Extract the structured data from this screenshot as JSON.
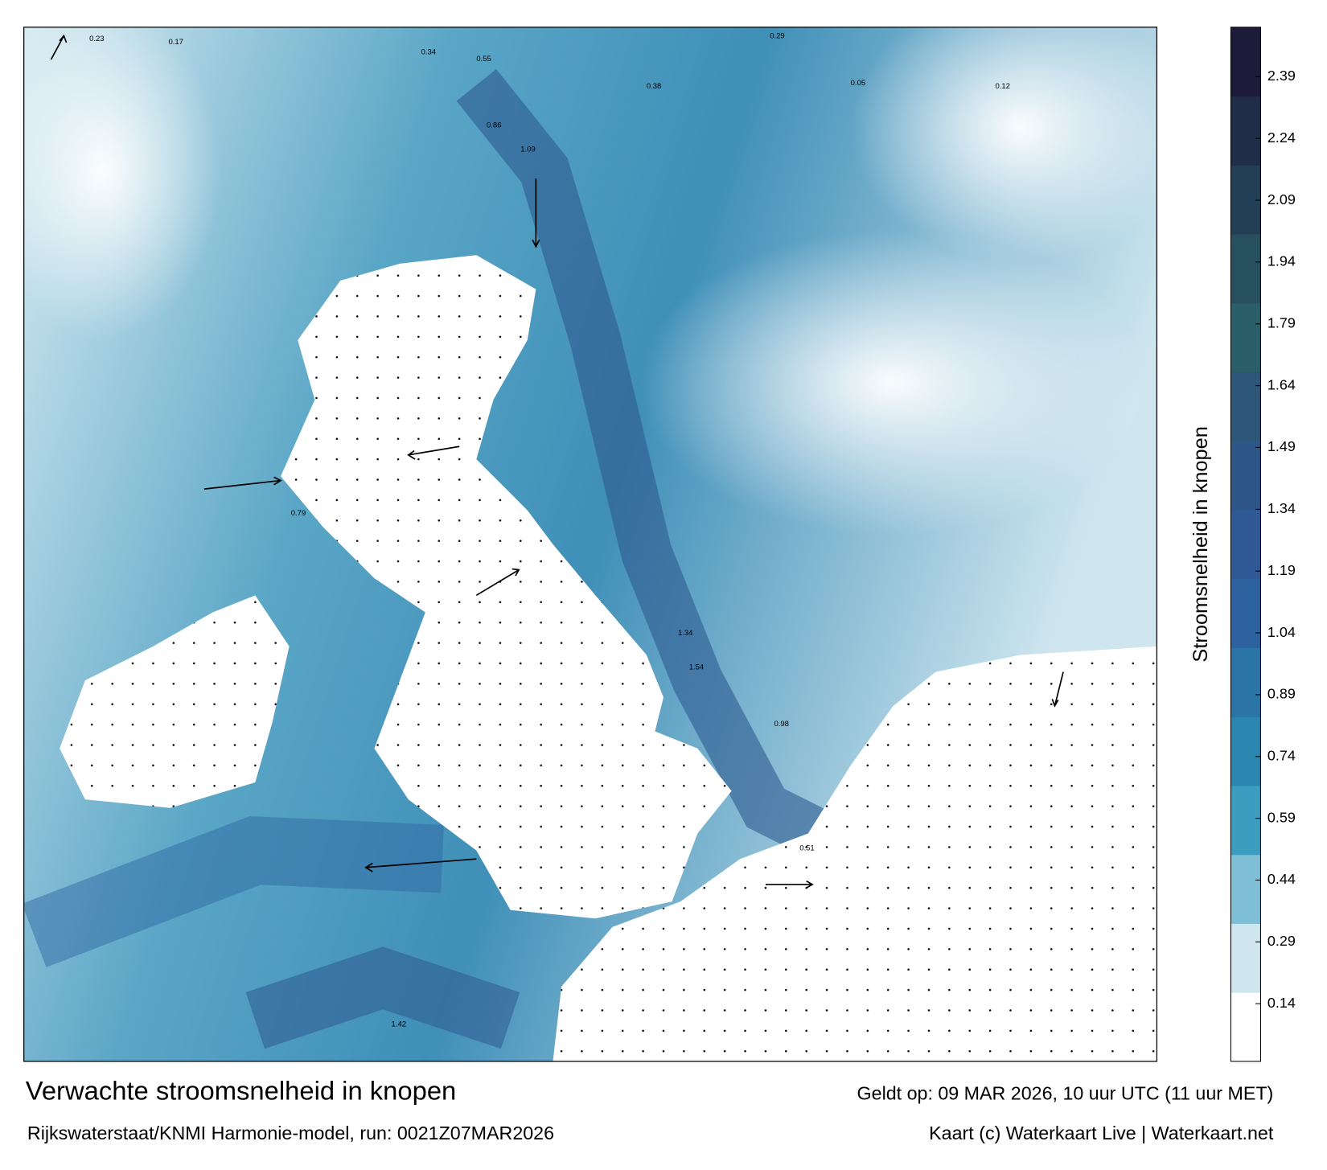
{
  "chart_data": {
    "type": "map",
    "title": "Verwachte stroomsnelheid in knopen",
    "valid_time": "Geldt op: 09 MAR 2026, 10 uur UTC (11 uur MET)",
    "source": "Rijkswaterstaat/KNMI Harmonie-model, run: 0021Z07MAR2026",
    "credit": "Kaart (c) Waterkaart Live | Waterkaart.net",
    "colorbar": {
      "label": "Stroomsnelheid in knopen",
      "ylim": [
        0,
        2.51
      ],
      "yticks": [
        0.14,
        0.29,
        0.44,
        0.59,
        0.74,
        0.89,
        1.04,
        1.19,
        1.34,
        1.49,
        1.64,
        1.79,
        1.94,
        2.09,
        2.24,
        2.39
      ],
      "colors": [
        "#ffffff",
        "#cfe6ef",
        "#7fbfd6",
        "#3c9dc0",
        "#2a86ae",
        "#2a74a6",
        "#2d62a0",
        "#2f5995",
        "#2e5688",
        "#2d5678",
        "#2a5f6a",
        "#27505f",
        "#233f55",
        "#1f2d48",
        "#1c1c3a"
      ]
    },
    "map_labels": [
      "0.23",
      "0.17",
      "0.34",
      "0.55",
      "0.86",
      "1.09",
      "0.38",
      "0.29",
      "0.79",
      "1.34",
      "1.54",
      "0.98",
      "1.42",
      "0.51",
      "0.12",
      "0.05"
    ]
  }
}
